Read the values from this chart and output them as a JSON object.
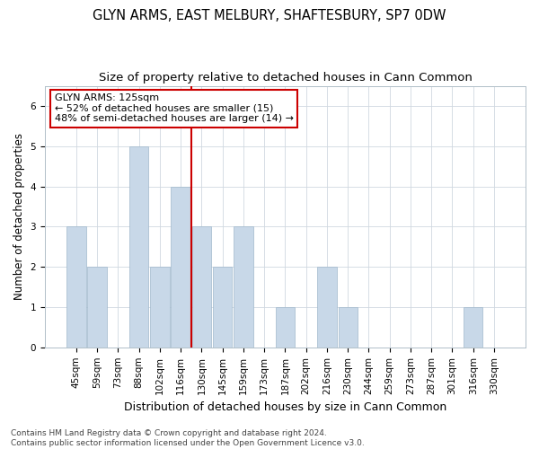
{
  "title": "GLYN ARMS, EAST MELBURY, SHAFTESBURY, SP7 0DW",
  "subtitle": "Size of property relative to detached houses in Cann Common",
  "xlabel": "Distribution of detached houses by size in Cann Common",
  "ylabel": "Number of detached properties",
  "categories": [
    "45sqm",
    "59sqm",
    "73sqm",
    "88sqm",
    "102sqm",
    "116sqm",
    "130sqm",
    "145sqm",
    "159sqm",
    "173sqm",
    "187sqm",
    "202sqm",
    "216sqm",
    "230sqm",
    "244sqm",
    "259sqm",
    "273sqm",
    "287sqm",
    "301sqm",
    "316sqm",
    "330sqm"
  ],
  "values": [
    3,
    2,
    0,
    5,
    2,
    4,
    3,
    2,
    3,
    0,
    1,
    0,
    2,
    1,
    0,
    0,
    0,
    0,
    0,
    1,
    0
  ],
  "bar_color": "#c8d8e8",
  "bar_edge_color": "#a0b8cc",
  "vline_x": 5.5,
  "vline_color": "#cc0000",
  "annotation_text": "GLYN ARMS: 125sqm\n← 52% of detached houses are smaller (15)\n48% of semi-detached houses are larger (14) →",
  "annotation_box_color": "#ffffff",
  "annotation_box_edge": "#cc0000",
  "ylim": [
    0,
    6.5
  ],
  "yticks": [
    0,
    1,
    2,
    3,
    4,
    5,
    6
  ],
  "footer": "Contains HM Land Registry data © Crown copyright and database right 2024.\nContains public sector information licensed under the Open Government Licence v3.0.",
  "title_fontsize": 10.5,
  "subtitle_fontsize": 9.5,
  "xlabel_fontsize": 9,
  "ylabel_fontsize": 8.5,
  "tick_fontsize": 7.5,
  "footer_fontsize": 6.5,
  "ann_fontsize": 8
}
